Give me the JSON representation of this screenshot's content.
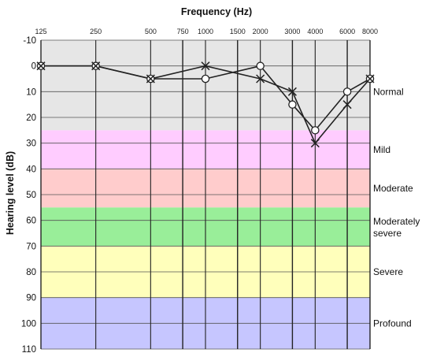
{
  "chart_data": {
    "type": "line",
    "title": "Frequency (Hz)",
    "xlabel": "Frequency (Hz)",
    "ylabel": "Hearing level (dB)",
    "x": [
      125,
      250,
      500,
      750,
      1000,
      1500,
      2000,
      3000,
      4000,
      6000,
      8000
    ],
    "x_tick_labels": [
      "125",
      "250",
      "500",
      "750",
      "1000",
      "1500",
      "2000",
      "3000",
      "4000",
      "6000",
      "8000"
    ],
    "ylim": [
      -10,
      110
    ],
    "y_inverted": true,
    "y_ticks": [
      -10,
      0,
      10,
      20,
      30,
      40,
      50,
      60,
      70,
      80,
      90,
      100,
      110
    ],
    "grid": true,
    "series": [
      {
        "marker": "circle",
        "color": "#222222",
        "x": [
          125,
          250,
          500,
          1000,
          2000,
          3000,
          4000,
          6000,
          8000
        ],
        "values": [
          0,
          0,
          5,
          5,
          0,
          15,
          25,
          10,
          5
        ]
      },
      {
        "marker": "cross",
        "color": "#222222",
        "x": [
          125,
          250,
          500,
          1000,
          2000,
          3000,
          4000,
          6000,
          8000
        ],
        "values": [
          0,
          0,
          5,
          0,
          5,
          10,
          30,
          15,
          5
        ]
      }
    ],
    "bands": [
      {
        "label": "Normal",
        "from": -10,
        "to": 25,
        "color": "#e6e6e6"
      },
      {
        "label": "Mild",
        "from": 25,
        "to": 40,
        "color": "#ffccff"
      },
      {
        "label": "Moderate",
        "from": 40,
        "to": 55,
        "color": "#ffcccc"
      },
      {
        "label": "Moderately severe",
        "from": 55,
        "to": 70,
        "color": "#99ee99"
      },
      {
        "label": "Severe",
        "from": 70,
        "to": 90,
        "color": "#ffffbb"
      },
      {
        "label": "Profound",
        "from": 90,
        "to": 110,
        "color": "#c6c6ff"
      }
    ]
  }
}
